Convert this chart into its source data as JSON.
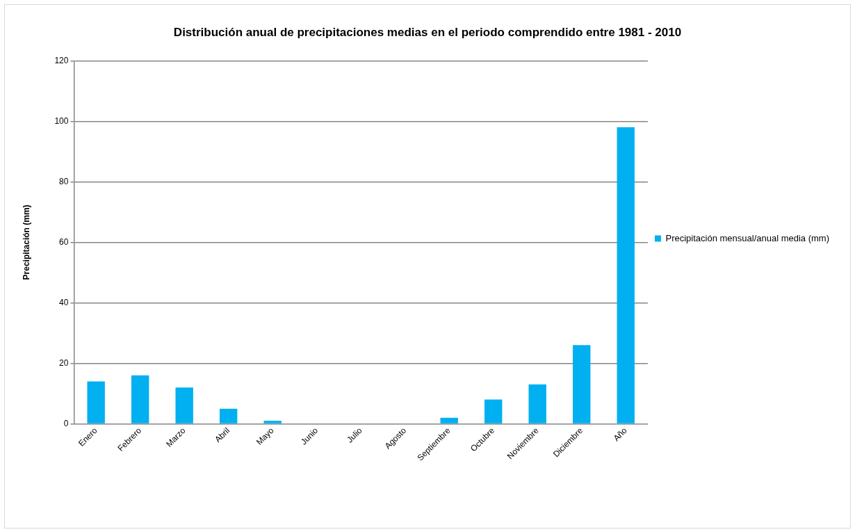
{
  "chart_data": {
    "type": "bar",
    "title": "Distribución anual de precipitaciones medias en el periodo comprendido entre 1981 - 2010",
    "ylabel": "Precipitación (mm)",
    "categories": [
      "Enero",
      "Febrero",
      "Marzo",
      "Abril",
      "Mayo",
      "Junio",
      "Julio",
      "Agosto",
      "Septiembre",
      "Octubre",
      "Noviembre",
      "Diciembre",
      "Año"
    ],
    "series": [
      {
        "name": "Precipitación mensual/anual media (mm)",
        "color": "#00b0f0",
        "values": [
          14,
          16,
          12,
          5,
          1,
          0,
          0,
          0,
          2,
          8,
          13,
          26,
          98
        ]
      }
    ],
    "ylim": [
      0,
      120
    ],
    "yticks": [
      0,
      20,
      40,
      60,
      80,
      100,
      120
    ],
    "grid": "y",
    "legend": "right"
  }
}
